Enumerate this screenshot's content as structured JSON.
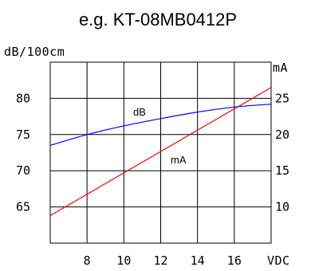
{
  "chart_data": {
    "type": "line",
    "title": "e.g.    KT-08MB0412P",
    "xlabel": "VDC",
    "ylabel_left": "dB/100cm",
    "ylabel_right": "mA",
    "x_range": [
      6,
      18
    ],
    "x_ticks": [
      8,
      10,
      12,
      14,
      16
    ],
    "y_left_range": [
      60,
      85
    ],
    "y_left_ticks": [
      65,
      70,
      75,
      80
    ],
    "y_right_range": [
      5,
      30
    ],
    "y_right_ticks": [
      10,
      15,
      20,
      25
    ],
    "grid": true,
    "series": [
      {
        "name": "dB",
        "axis": "left",
        "color": "#0000ff",
        "x": [
          6,
          8,
          10,
          12,
          14,
          16,
          18
        ],
        "y": [
          73.5,
          75,
          76.2,
          77.2,
          78.1,
          78.8,
          79.2
        ]
      },
      {
        "name": "mA",
        "axis": "right",
        "color": "#ff0000",
        "x": [
          6,
          18
        ],
        "y": [
          8.8,
          26.5
        ]
      }
    ]
  }
}
